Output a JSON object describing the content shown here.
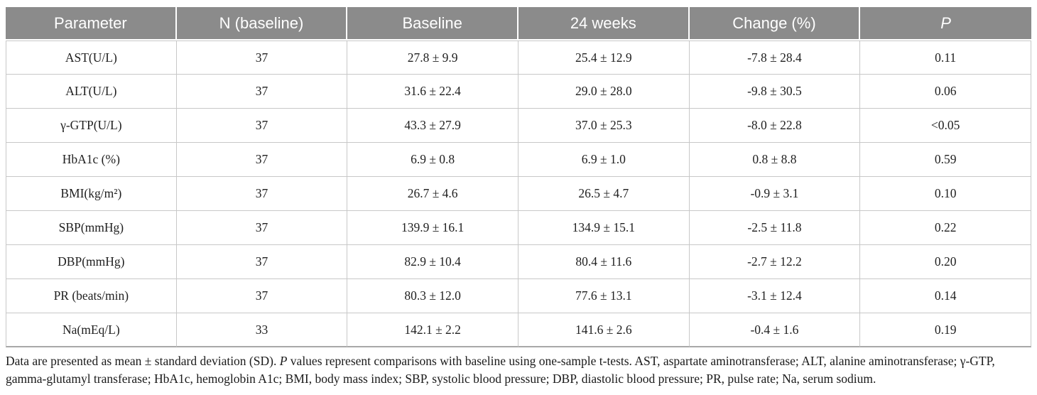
{
  "colors": {
    "header_background": "#8b8b8b",
    "header_text": "#ffffff",
    "grid_line": "#c8c8c8",
    "body_text": "#1f1f1f",
    "row_background": "#ffffff"
  },
  "table": {
    "columns": [
      {
        "key": "parameter",
        "label": "Parameter",
        "italic": false
      },
      {
        "key": "n-baseline",
        "label": "N (baseline)",
        "italic": false
      },
      {
        "key": "baseline",
        "label": "Baseline",
        "italic": false
      },
      {
        "key": "24-weeks",
        "label": "24 weeks",
        "italic": false
      },
      {
        "key": "change-percent",
        "label": "Change (%)",
        "italic": false
      },
      {
        "key": "p-value",
        "label": "P",
        "italic": true
      }
    ],
    "rows": [
      [
        "AST(U/L)",
        "37",
        "27.8 ± 9.9",
        "25.4 ± 12.9",
        "-7.8 ± 28.4",
        "0.11"
      ],
      [
        "ALT(U/L)",
        "37",
        "31.6 ± 22.4",
        "29.0 ± 28.0",
        "-9.8 ± 30.5",
        "0.06"
      ],
      [
        "γ-GTP(U/L)",
        "37",
        "43.3 ± 27.9",
        "37.0 ± 25.3",
        "-8.0 ± 22.8",
        "<0.05"
      ],
      [
        "HbA1c (%)",
        "37",
        "6.9 ± 0.8",
        "6.9 ± 1.0",
        "0.8 ± 8.8",
        "0.59"
      ],
      [
        "BMI(kg/m²)",
        "37",
        "26.7 ± 4.6",
        "26.5 ± 4.7",
        "-0.9 ± 3.1",
        "0.10"
      ],
      [
        "SBP(mmHg)",
        "37",
        "139.9 ± 16.1",
        "134.9 ± 15.1",
        "-2.5 ± 11.8",
        "0.22"
      ],
      [
        "DBP(mmHg)",
        "37",
        "82.9 ± 10.4",
        "80.4 ± 11.6",
        "-2.7 ± 12.2",
        "0.20"
      ],
      [
        "PR (beats/min)",
        "37",
        "80.3 ± 12.0",
        "77.6 ± 13.1",
        "-3.1 ± 12.4",
        "0.14"
      ],
      [
        "Na(mEq/L)",
        "33",
        "142.1 ± 2.2",
        "141.6 ± 2.6",
        "-0.4 ± 1.6",
        "0.19"
      ]
    ]
  },
  "footnote": {
    "parts": [
      {
        "text": "Data are presented as mean ± standard deviation (SD). ",
        "italic": false
      },
      {
        "text": "P",
        "italic": true
      },
      {
        "text": " values represent comparisons with baseline using one-sample t-tests. AST, aspartate aminotransferase; ALT, alanine aminotransferase; γ-GTP, gamma-glutamyl transferase; HbA1c, hemoglobin A1c; BMI, body mass index; SBP, systolic blood pressure; DBP, diastolic blood pressure; PR, pulse rate; Na, serum sodium.",
        "italic": false
      }
    ]
  }
}
